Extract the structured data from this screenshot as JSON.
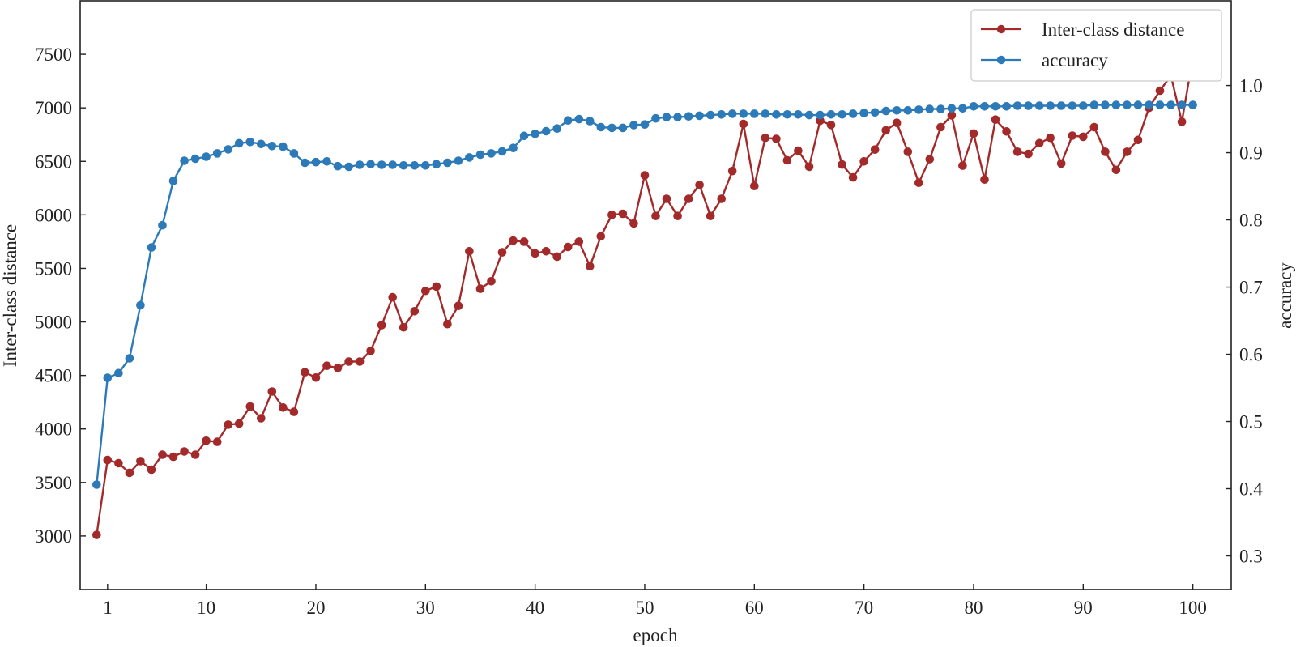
{
  "chart_data": {
    "type": "line",
    "xlabel": "epoch",
    "ylabel_left": "Inter-class distance",
    "ylabel_right": "accuracy",
    "xlim": [
      -1.5,
      103.5
    ],
    "ylim_left": [
      2500,
      8000
    ],
    "ylim_right": [
      0.25,
      1.126
    ],
    "xticks": [
      1,
      10,
      20,
      30,
      40,
      50,
      60,
      70,
      80,
      90,
      100
    ],
    "yticks_left": [
      3000,
      3500,
      4000,
      4500,
      5000,
      5500,
      6000,
      6500,
      7000,
      7500
    ],
    "yticks_right": [
      0.3,
      0.4,
      0.5,
      0.6,
      0.7,
      0.8,
      0.9,
      1.0
    ],
    "ytick_labels_right": [
      "0.3",
      "0.4",
      "0.5",
      "0.6",
      "0.7",
      "0.8",
      "0.9",
      "1.0"
    ],
    "grid": false,
    "legend_position": "top-right",
    "x": [
      0,
      1,
      2,
      3,
      4,
      5,
      6,
      7,
      8,
      9,
      10,
      11,
      12,
      13,
      14,
      15,
      16,
      17,
      18,
      19,
      20,
      21,
      22,
      23,
      24,
      25,
      26,
      27,
      28,
      29,
      30,
      31,
      32,
      33,
      34,
      35,
      36,
      37,
      38,
      39,
      40,
      41,
      42,
      43,
      44,
      45,
      46,
      47,
      48,
      49,
      50,
      51,
      52,
      53,
      54,
      55,
      56,
      57,
      58,
      59,
      60,
      61,
      62,
      63,
      64,
      65,
      66,
      67,
      68,
      69,
      70,
      71,
      72,
      73,
      74,
      75,
      76,
      77,
      78,
      79,
      80,
      81,
      82,
      83,
      84,
      85,
      86,
      87,
      88,
      89,
      90,
      91,
      92,
      93,
      94,
      95,
      96,
      97,
      98,
      99,
      100
    ],
    "series": [
      {
        "name": "Inter-class distance",
        "axis": "left",
        "color": "#a32a2a",
        "values": [
          3010,
          3710,
          3680,
          3590,
          3700,
          3620,
          3760,
          3740,
          3790,
          3760,
          3890,
          3880,
          4040,
          4050,
          4210,
          4100,
          4350,
          4200,
          4160,
          4530,
          4480,
          4590,
          4570,
          4630,
          4630,
          4730,
          4970,
          5230,
          4950,
          5100,
          5290,
          5330,
          4980,
          5150,
          5660,
          5310,
          5380,
          5650,
          5760,
          5750,
          5640,
          5660,
          5610,
          5700,
          5750,
          5520,
          5800,
          6000,
          6010,
          5920,
          6370,
          5990,
          6150,
          5990,
          6150,
          6280,
          5990,
          6150,
          6410,
          6850,
          6270,
          6720,
          6710,
          6510,
          6600,
          6450,
          6880,
          6840,
          6470,
          6350,
          6500,
          6610,
          6790,
          6860,
          6590,
          6300,
          6520,
          6820,
          6930,
          6460,
          6760,
          6330,
          6890,
          6780,
          6590,
          6570,
          6670,
          6720,
          6480,
          6740,
          6730,
          6820,
          6590,
          6420,
          6590,
          6700,
          7000,
          7160,
          7300,
          6870,
          7470
        ]
      },
      {
        "name": "accuracy",
        "axis": "right",
        "color": "#2d7ab8",
        "values": [
          0.406,
          0.565,
          0.572,
          0.594,
          0.673,
          0.759,
          0.792,
          0.858,
          0.888,
          0.891,
          0.894,
          0.899,
          0.905,
          0.914,
          0.916,
          0.913,
          0.91,
          0.909,
          0.899,
          0.885,
          0.886,
          0.887,
          0.88,
          0.879,
          0.882,
          0.883,
          0.882,
          0.882,
          0.881,
          0.881,
          0.881,
          0.883,
          0.885,
          0.888,
          0.893,
          0.897,
          0.899,
          0.902,
          0.907,
          0.925,
          0.928,
          0.932,
          0.936,
          0.948,
          0.95,
          0.947,
          0.938,
          0.937,
          0.937,
          0.941,
          0.942,
          0.951,
          0.953,
          0.953,
          0.954,
          0.955,
          0.956,
          0.957,
          0.958,
          0.958,
          0.958,
          0.958,
          0.957,
          0.957,
          0.957,
          0.956,
          0.956,
          0.957,
          0.957,
          0.958,
          0.959,
          0.96,
          0.962,
          0.963,
          0.963,
          0.964,
          0.965,
          0.965,
          0.966,
          0.966,
          0.969,
          0.969,
          0.969,
          0.969,
          0.97,
          0.97,
          0.97,
          0.97,
          0.97,
          0.97,
          0.97,
          0.971,
          0.971,
          0.971,
          0.971,
          0.971,
          0.971,
          0.971,
          0.971,
          0.971,
          0.971
        ]
      }
    ]
  }
}
